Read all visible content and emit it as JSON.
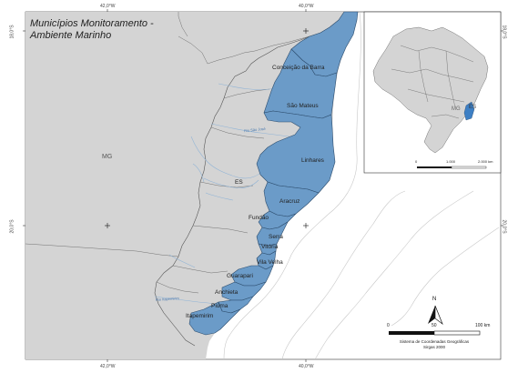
{
  "title": {
    "line1": "Municípios Monitoramento -",
    "line2": "Ambiente Marinho"
  },
  "graticule": {
    "lon_left": "42,0°W",
    "lon_right": "40,0°W",
    "lat_top": "18,0°S",
    "lat_bottom": "20,0°S"
  },
  "states": {
    "mg": "MG",
    "es": "ES"
  },
  "municipalities": [
    "Conceição da Barra",
    "São Mateus",
    "Linhares",
    "Aracruz",
    "Fundão",
    "Serra",
    "Vitória",
    "Vila Velha",
    "Guarapari",
    "Anchieta",
    "Piúma",
    "Itapemirim"
  ],
  "rivers": {
    "sao_jose": "Rio São José",
    "itapemirim": "Rio Itapemirim"
  },
  "inset": {
    "mg": "MG",
    "es": "ES",
    "scale_0": "0",
    "scale_1": "1.000",
    "scale_2": "2.000 km"
  },
  "north": "N",
  "scale": {
    "zero": "0",
    "mid": "50",
    "max": "100 km"
  },
  "crs": {
    "line1": "Sistema de Coordenadas Geográficas",
    "line2": "Sirgas 2000"
  },
  "colors": {
    "land": "#d4d4d4",
    "municipality_fill": "#6b9bc8",
    "municipality_stroke": "#2d4d6e",
    "water": "#ffffff",
    "river": "#8fb3d6"
  },
  "icons": [
    "north-arrow-icon",
    "graticule-cross-icon"
  ]
}
